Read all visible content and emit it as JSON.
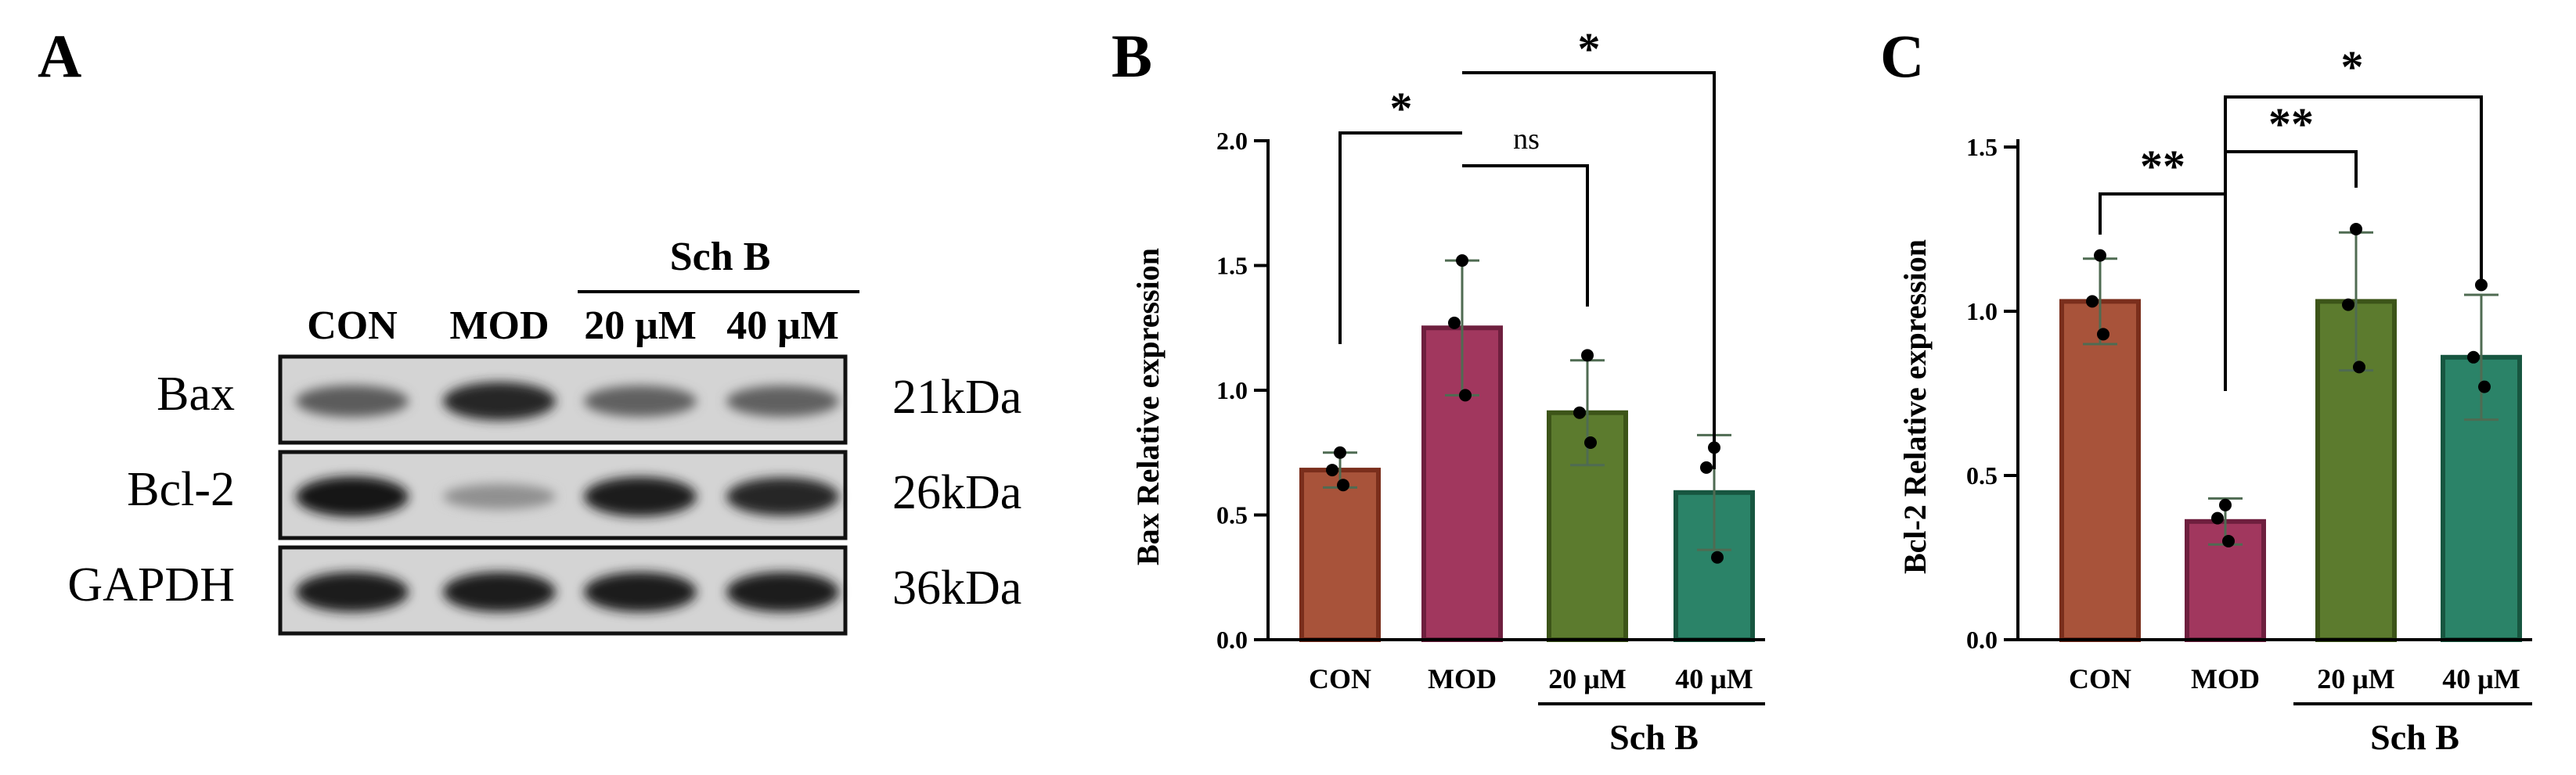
{
  "panels": {
    "a_label": "A",
    "b_label": "B",
    "c_label": "C"
  },
  "blot": {
    "group_label": "Sch B",
    "lanes": [
      "CON",
      "MOD",
      "20 μM",
      "40 μM"
    ],
    "rows": [
      {
        "protein": "Bax",
        "mw": "21kDa",
        "intensities": [
          0.62,
          0.9,
          0.6,
          0.6
        ]
      },
      {
        "protein": "Bcl-2",
        "mw": "26kDa",
        "intensities": [
          0.98,
          0.35,
          0.95,
          0.9
        ]
      },
      {
        "protein": "GAPDH",
        "mw": "36kDa",
        "intensities": [
          0.97,
          0.97,
          0.97,
          0.97
        ]
      }
    ]
  },
  "colors": {
    "con_fill": "#A8533A",
    "con_edge": "#7A2E1C",
    "mod_fill": "#A1375E",
    "mod_edge": "#6E1F3E",
    "sch20_fill": "#5C7B2E",
    "sch20_edge": "#3C5418",
    "sch40_fill": "#2B8368",
    "sch40_edge": "#175640",
    "error_bar": "#4F6B52"
  },
  "chart_data": [
    {
      "type": "bar",
      "panel": "B",
      "categories": [
        "CON",
        "MOD",
        "20 μM",
        "40 μM"
      ],
      "group_label": "Sch B",
      "ylabel": "Bax Relative expression",
      "ylim": [
        0,
        2.0
      ],
      "yticks": [
        "0.0",
        "0.5",
        "1.0",
        "1.5",
        "2.0"
      ],
      "values": [
        0.68,
        1.25,
        0.91,
        0.59
      ],
      "sd": [
        0.07,
        0.27,
        0.21,
        0.23
      ],
      "points": [
        [
          0.75,
          0.68,
          0.62
        ],
        [
          1.52,
          1.27,
          0.98
        ],
        [
          1.14,
          0.91,
          0.79
        ],
        [
          0.77,
          0.69,
          0.33
        ]
      ],
      "significance": [
        {
          "from": "CON",
          "to": "MOD",
          "label": "*"
        },
        {
          "from": "MOD",
          "to": "20 μM",
          "label": "ns"
        },
        {
          "from": "MOD",
          "to": "40 μM",
          "label": "*"
        }
      ]
    },
    {
      "type": "bar",
      "panel": "C",
      "categories": [
        "CON",
        "MOD",
        "20 μM",
        "40 μM"
      ],
      "group_label": "Sch B",
      "ylabel": "Bcl-2 Relative expression",
      "ylim": [
        0,
        1.5
      ],
      "yticks": [
        "0.0",
        "0.5",
        "1.0",
        "1.5"
      ],
      "values": [
        1.03,
        0.36,
        1.03,
        0.86
      ],
      "sd": [
        0.13,
        0.07,
        0.21,
        0.19
      ],
      "points": [
        [
          1.17,
          1.03,
          0.93
        ],
        [
          0.41,
          0.37,
          0.3
        ],
        [
          1.25,
          1.02,
          0.83
        ],
        [
          1.08,
          0.86,
          0.77
        ]
      ],
      "significance": [
        {
          "from": "CON",
          "to": "MOD",
          "label": "**"
        },
        {
          "from": "MOD",
          "to": "20 μM",
          "label": "**"
        },
        {
          "from": "MOD",
          "to": "40 μM",
          "label": "*"
        }
      ]
    }
  ]
}
